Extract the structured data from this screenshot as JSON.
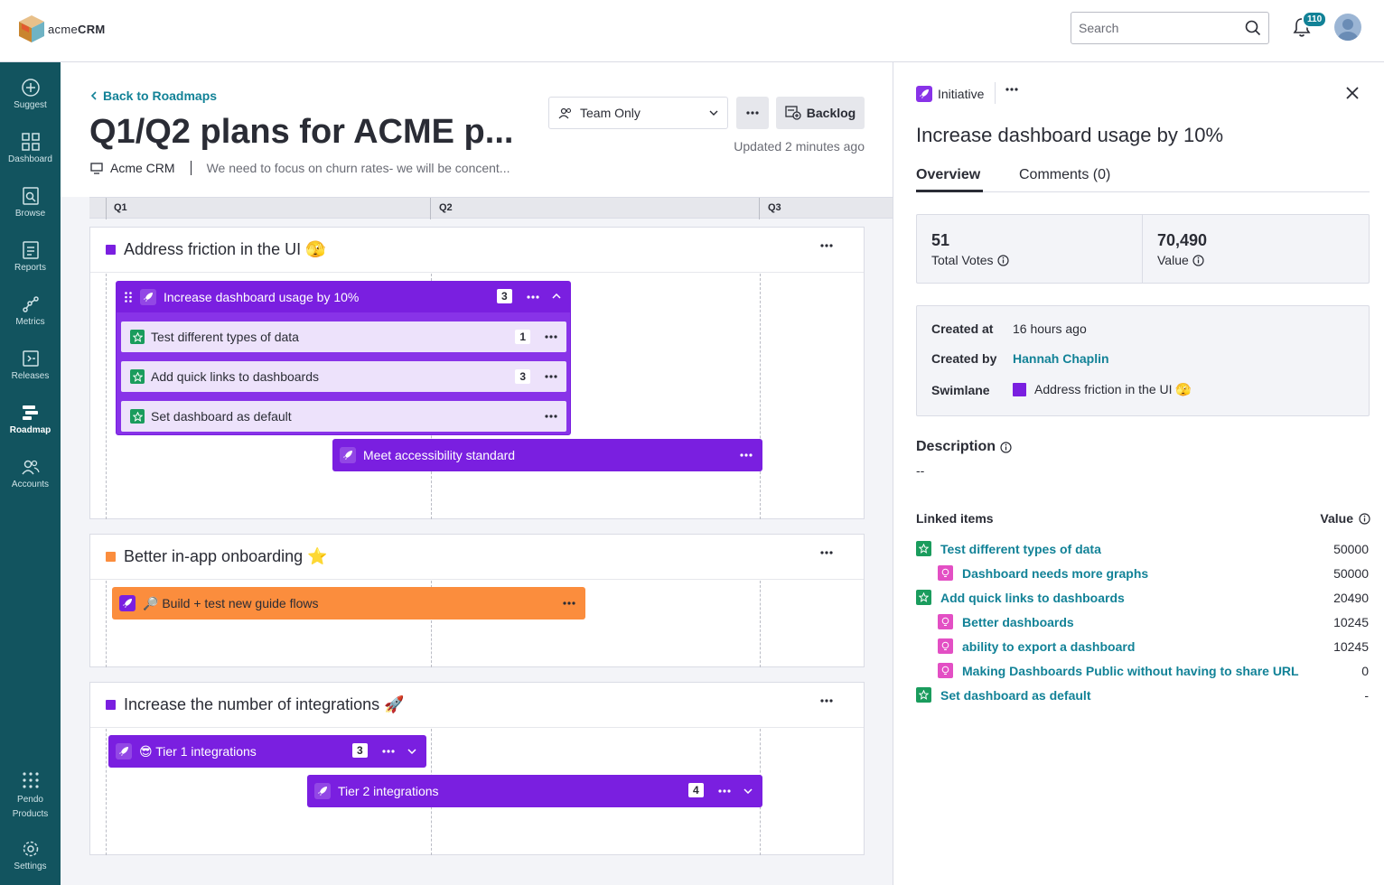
{
  "app": {
    "logo_text_a": "acme",
    "logo_text_b": "CRM"
  },
  "topbar": {
    "search_placeholder": "Search",
    "notification_count": "110"
  },
  "nav": [
    {
      "label": "Suggest",
      "icon": "plus-circle-icon"
    },
    {
      "label": "Dashboard",
      "icon": "grid-icon"
    },
    {
      "label": "Browse",
      "icon": "browse-icon"
    },
    {
      "label": "Reports",
      "icon": "reports-icon"
    },
    {
      "label": "Metrics",
      "icon": "metrics-icon"
    },
    {
      "label": "Releases",
      "icon": "releases-icon"
    },
    {
      "label": "Roadmap",
      "icon": "roadmap-icon"
    },
    {
      "label": "Accounts",
      "icon": "accounts-icon"
    },
    {
      "label": "Pendo Products",
      "icon": "apps-grid-icon"
    },
    {
      "label": "Settings",
      "icon": "gear-icon"
    }
  ],
  "roadmap": {
    "back_label": "Back to Roadmaps",
    "title": "Q1/Q2 plans for ACME p...",
    "product": "Acme CRM",
    "description": "We need to focus on churn rates- we will be concent...",
    "visibility": "Team Only",
    "backlog_label": "Backlog",
    "updated": "Updated 2 minutes ago",
    "quarters": [
      "Q1",
      "Q2",
      "Q3"
    ]
  },
  "swimlanes": [
    {
      "title": "Address friction in the UI 🫣",
      "color": "#7a1fe0",
      "bars": [
        {
          "label": "Increase dashboard usage by 10%",
          "count": "3"
        },
        {
          "label": "Meet accessibility standard"
        }
      ],
      "children": [
        {
          "label": "Test different types of data",
          "count": "1"
        },
        {
          "label": "Add quick links to dashboards",
          "count": "3"
        },
        {
          "label": "Set dashboard as default"
        }
      ]
    },
    {
      "title": "Better in-app onboarding ⭐",
      "color": "#fb8d3d",
      "bars": [
        {
          "label": "🔎 Build + test new guide flows"
        }
      ]
    },
    {
      "title": "Increase the number of integrations 🚀",
      "color": "#7a1fe0",
      "bars": [
        {
          "label": "😎 Tier 1 integrations",
          "count": "3"
        },
        {
          "label": "Tier 2 integrations",
          "count": "4"
        }
      ]
    }
  ],
  "panel": {
    "type": "Initiative",
    "title": "Increase dashboard usage by 10%",
    "tabs": [
      "Overview",
      "Comments (0)"
    ],
    "votes": "51",
    "votes_label": "Total Votes",
    "value": "70,490",
    "value_label": "Value",
    "created_at_label": "Created at",
    "created_at": "16 hours ago",
    "created_by_label": "Created by",
    "created_by": "Hannah Chaplin",
    "swimlane_label": "Swimlane",
    "swimlane": "Address friction in the UI 🫣",
    "description_label": "Description",
    "description": "--",
    "linked_label": "Linked items",
    "value_col_label": "Value",
    "linked": [
      {
        "label": "Test different types of data",
        "value": "50000",
        "kind": "feature"
      },
      {
        "label": "Dashboard needs more graphs",
        "value": "50000",
        "kind": "idea"
      },
      {
        "label": "Add quick links to dashboards",
        "value": "20490",
        "kind": "feature"
      },
      {
        "label": "Better dashboards",
        "value": "10245",
        "kind": "idea"
      },
      {
        "label": "ability to export a dashboard",
        "value": "10245",
        "kind": "idea"
      },
      {
        "label": "Making Dashboards Public without having to share URL",
        "value": "0",
        "kind": "idea"
      },
      {
        "label": "Set dashboard as default",
        "value": "-",
        "kind": "feature"
      }
    ]
  }
}
